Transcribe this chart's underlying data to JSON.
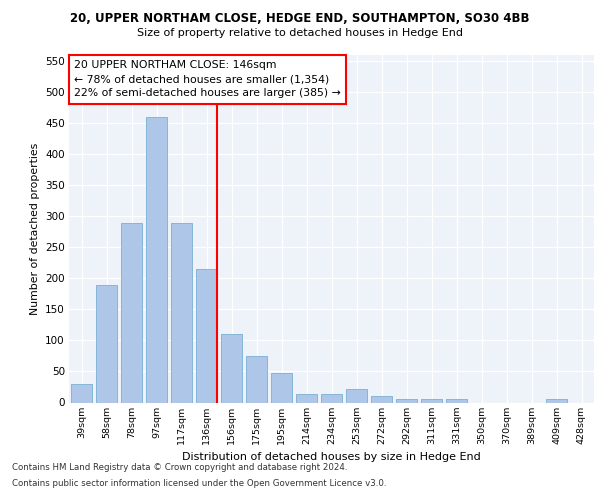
{
  "title1": "20, UPPER NORTHAM CLOSE, HEDGE END, SOUTHAMPTON, SO30 4BB",
  "title2": "Size of property relative to detached houses in Hedge End",
  "xlabel": "Distribution of detached houses by size in Hedge End",
  "ylabel": "Number of detached properties",
  "categories": [
    "39sqm",
    "58sqm",
    "78sqm",
    "97sqm",
    "117sqm",
    "136sqm",
    "156sqm",
    "175sqm",
    "195sqm",
    "214sqm",
    "234sqm",
    "253sqm",
    "272sqm",
    "292sqm",
    "311sqm",
    "331sqm",
    "350sqm",
    "370sqm",
    "389sqm",
    "409sqm",
    "428sqm"
  ],
  "values": [
    30,
    190,
    290,
    460,
    290,
    215,
    110,
    75,
    47,
    13,
    13,
    22,
    10,
    5,
    5,
    6,
    0,
    0,
    0,
    5,
    0
  ],
  "bar_color": "#aec6e8",
  "bar_edge_color": "#7aafd4",
  "property_label": "20 UPPER NORTHAM CLOSE: 146sqm",
  "annotation_line1": "← 78% of detached houses are smaller (1,354)",
  "annotation_line2": "22% of semi-detached houses are larger (385) →",
  "vline_bar_index": 5,
  "ylim": [
    0,
    560
  ],
  "yticks": [
    0,
    50,
    100,
    150,
    200,
    250,
    300,
    350,
    400,
    450,
    500,
    550
  ],
  "bg_color": "#eef2f9",
  "grid_color": "#ffffff",
  "footnote1": "Contains HM Land Registry data © Crown copyright and database right 2024.",
  "footnote2": "Contains public sector information licensed under the Open Government Licence v3.0."
}
